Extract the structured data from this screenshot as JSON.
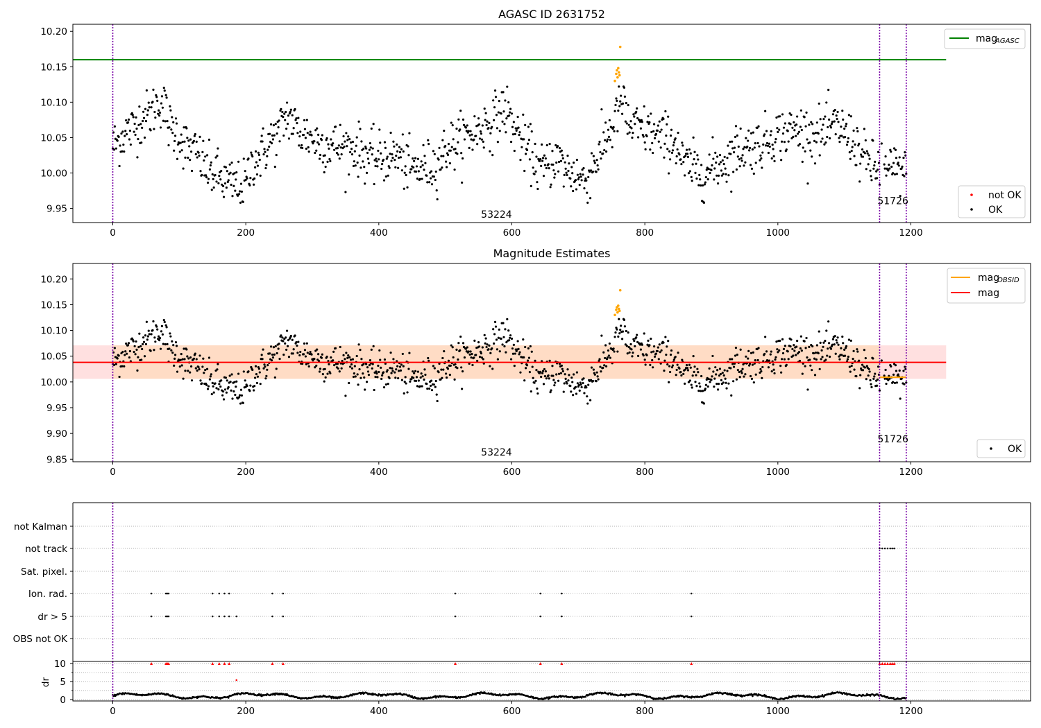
{
  "chart_data": [
    {
      "type": "scatter",
      "title": "AGASC ID 2631752",
      "xlabel": "",
      "ylabel": "",
      "xlim": [
        -60,
        1380
      ],
      "ylim": [
        9.93,
        10.21
      ],
      "xticks": [
        0,
        200,
        400,
        600,
        800,
        1000,
        1200
      ],
      "xtick_labels": [
        "0",
        "200",
        "400",
        "600",
        "800",
        "1000",
        "1200"
      ],
      "yticks": [
        9.95,
        10.0,
        10.05,
        10.1,
        10.15,
        10.2
      ],
      "ytick_labels": [
        "9.95",
        "10.00",
        "10.05",
        "10.10",
        "10.15",
        "10.20"
      ],
      "grid": false,
      "vlines": [
        0,
        1153,
        1193
      ],
      "lines": [
        {
          "name": "mag_AGASC",
          "color": "#008000",
          "y": 10.16,
          "x0": -60,
          "x1": 1253
        }
      ],
      "series": [
        {
          "name": "OK",
          "color": "#000000",
          "values": "OK points (~1190 samples, mag 9.96–10.12)"
        },
        {
          "name": "not OK",
          "color": "#ff0000"
        }
      ],
      "orange_points": [
        [
          755,
          10.13
        ],
        [
          757,
          10.14
        ],
        [
          758,
          10.145
        ],
        [
          760,
          10.148
        ],
        [
          761,
          10.142
        ],
        [
          762,
          10.138
        ],
        [
          763,
          10.178
        ],
        [
          759,
          10.135
        ]
      ],
      "annotations": [
        {
          "text": "53224",
          "x": 577,
          "y": 9.937
        },
        {
          "text": "51726",
          "x": 1173,
          "y": 9.956
        }
      ],
      "legends": [
        {
          "placement": "upper right",
          "entries": [
            {
              "label": "mag",
              "sub": "AGASC",
              "kind": "line",
              "color": "#008000"
            }
          ]
        },
        {
          "placement": "lower right",
          "entries": [
            {
              "label": "not OK",
              "kind": "dot",
              "color": "#ff0000"
            },
            {
              "label": "OK",
              "kind": "dot",
              "color": "#000000"
            }
          ]
        }
      ]
    },
    {
      "type": "scatter",
      "title": "Magnitude Estimates",
      "xlabel": "",
      "ylabel": "",
      "xlim": [
        -60,
        1380
      ],
      "ylim": [
        9.845,
        10.23
      ],
      "xticks": [
        0,
        200,
        400,
        600,
        800,
        1000,
        1200
      ],
      "xtick_labels": [
        "0",
        "200",
        "400",
        "600",
        "800",
        "1000",
        "1200"
      ],
      "yticks": [
        9.85,
        9.9,
        9.95,
        10.0,
        10.05,
        10.1,
        10.15,
        10.2
      ],
      "ytick_labels": [
        "9.85",
        "9.90",
        "9.95",
        "10.00",
        "10.05",
        "10.10",
        "10.15",
        "10.20"
      ],
      "grid": false,
      "vlines": [
        0,
        1153,
        1193
      ],
      "bands": [
        {
          "color": "#ffcccc",
          "alpha": 0.6,
          "y0": 10.006,
          "y1": 10.071,
          "x0": -60,
          "x1": 1253
        },
        {
          "color": "#ffd9b3",
          "alpha": 0.6,
          "y0": 10.006,
          "y1": 10.071,
          "x0": 0,
          "x1": 1153
        }
      ],
      "lines": [
        {
          "name": "mag",
          "color": "#ff0000",
          "y": 10.038,
          "x0": -60,
          "x1": 1253
        },
        {
          "name": "mag_OBSID",
          "color": "#ffa500",
          "y": 10.009,
          "x0": 1153,
          "x1": 1193
        }
      ],
      "orange_points": [
        [
          755,
          10.13
        ],
        [
          757,
          10.14
        ],
        [
          758,
          10.145
        ],
        [
          760,
          10.148
        ],
        [
          761,
          10.142
        ],
        [
          762,
          10.138
        ],
        [
          763,
          10.178
        ],
        [
          759,
          10.135
        ]
      ],
      "annotations": [
        {
          "text": "53224",
          "x": 577,
          "y": 9.857
        },
        {
          "text": "51726",
          "x": 1173,
          "y": 9.883
        }
      ],
      "legends": [
        {
          "placement": "upper right",
          "entries": [
            {
              "label": "mag",
              "sub": "OBSID",
              "kind": "line",
              "color": "#ffa500"
            },
            {
              "label": "mag",
              "sub": "",
              "kind": "line",
              "color": "#ff0000"
            }
          ]
        },
        {
          "placement": "lower right",
          "entries": [
            {
              "label": "OK",
              "kind": "dot",
              "color": "#000000"
            }
          ]
        }
      ]
    },
    {
      "type": "scatter",
      "title": "",
      "xlabel": "",
      "ylabel": "",
      "xlim": [
        -60,
        1380
      ],
      "categories": [
        "not Kalman",
        "not track",
        "Sat. pixel.",
        "Ion. rad.",
        "dr > 5",
        "OBS not OK"
      ],
      "grid": true,
      "vlines": [
        0,
        1153,
        1193
      ],
      "flags": {
        "not track": [
          1153,
          1157,
          1161,
          1165,
          1169,
          1172,
          1175
        ],
        "Ion. rad.": [
          58,
          80,
          82,
          84,
          150,
          160,
          168,
          175,
          240,
          256,
          515,
          643,
          675,
          870
        ],
        "dr > 5": [
          58,
          80,
          82,
          84,
          150,
          160,
          168,
          175,
          186,
          240,
          256,
          515,
          643,
          675,
          870
        ]
      }
    },
    {
      "type": "scatter",
      "title": "",
      "xlabel": "",
      "ylabel": "dr",
      "xlim": [
        -60,
        1380
      ],
      "ylim": [
        -0.5,
        10.5
      ],
      "yticks": [
        0,
        5,
        10
      ],
      "ytick_labels": [
        "0",
        "5",
        "10"
      ],
      "grid": true,
      "vlines": [
        0,
        1153,
        1193
      ],
      "clipped_points": [
        58,
        80,
        82,
        84,
        150,
        160,
        168,
        175,
        240,
        256,
        515,
        643,
        675,
        870,
        1153,
        1157,
        1161,
        1165,
        1169,
        1172,
        1175
      ],
      "extra_points": [
        [
          186,
          5.4
        ]
      ],
      "series": [
        {
          "name": "dr",
          "color": "#000000",
          "values": "dr samples (~0.2–2.0)"
        }
      ]
    }
  ]
}
